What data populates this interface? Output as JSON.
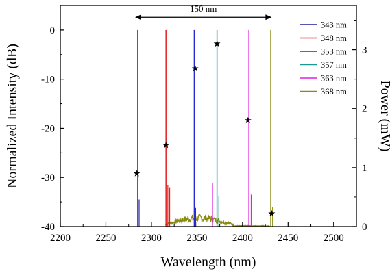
{
  "chart_data": {
    "type": "line",
    "xlabel": "Wavelength (nm)",
    "ylabel_left": "Normalized Intensity (dB)",
    "ylabel_right": "Power (mW)",
    "xlim": [
      2200,
      2525
    ],
    "ylim_left": [
      -40,
      5
    ],
    "ylim_right": [
      0,
      3.75
    ],
    "x_ticks": [
      "2200",
      "2250",
      "2300",
      "2350",
      "2400",
      "2450",
      "2500"
    ],
    "y_ticks_left": [
      "0",
      "-10",
      "-20",
      "-30",
      "-40"
    ],
    "y_ticks_right": [
      "0",
      "1",
      "2",
      "3"
    ],
    "x_tick_values": [
      2200,
      2250,
      2300,
      2350,
      2400,
      2450,
      2500
    ],
    "y_tick_values_left": [
      0,
      -10,
      -20,
      -30,
      -40
    ],
    "y_tick_values_right": [
      0,
      1,
      2,
      3
    ],
    "legend_position": "top-right",
    "annotation": {
      "text": "150 nm",
      "from_x": 2282,
      "to_x": 2432,
      "y": 1.2
    },
    "series": [
      {
        "name": "343 nm",
        "color": "#1f1f9a",
        "peak_x": 2285,
        "side_peak": {
          "x": 2286.5,
          "y": -34.5
        }
      },
      {
        "name": "348 nm",
        "color": "#e02020",
        "peak_x": 2316,
        "side_peak": {
          "x": 2318,
          "y": -31.5
        }
      },
      {
        "name": "353 nm",
        "color": "#2a2ad0",
        "peak_x": 2347,
        "side_peak": {
          "x": 2348.5,
          "y": -36.2
        }
      },
      {
        "name": "357 nm",
        "color": "#1a9a90",
        "peak_x": 2372,
        "side_peak": {
          "x": 2374,
          "y": -33.8
        }
      },
      {
        "name": "363 nm",
        "color": "#e020e0",
        "peak_x": 2407,
        "side_peak": {
          "x": 2409.5,
          "y": -33.5
        }
      },
      {
        "name": "368 nm",
        "color": "#8a8a10",
        "peak_x": 2431,
        "side_peak": {
          "x": 2433,
          "y": -36.0
        }
      }
    ],
    "extra_peaks": [
      {
        "x": 2320,
        "y": -32.0,
        "color": "#e02020"
      },
      {
        "x": 2367,
        "y": -31.2,
        "color": "#e020e0"
      }
    ],
    "power_points": [
      {
        "x": 2284,
        "y": 0.9
      },
      {
        "x": 2316,
        "y": 1.38
      },
      {
        "x": 2348,
        "y": 2.68
      },
      {
        "x": 2372,
        "y": 3.1
      },
      {
        "x": 2406,
        "y": 1.8
      },
      {
        "x": 2432,
        "y": 0.22
      }
    ],
    "noise_band": {
      "color": "#8a8a10",
      "x_start": 2315,
      "x_end": 2390,
      "x_end_tail": 2430,
      "level": -38.8
    }
  }
}
